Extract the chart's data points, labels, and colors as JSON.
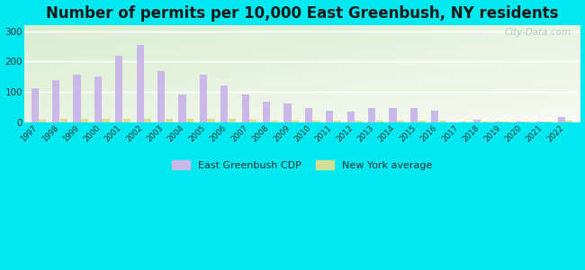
{
  "title": "Number of permits per 10,000 East Greenbush, NY residents",
  "years": [
    1997,
    1998,
    1999,
    2000,
    2001,
    2002,
    2003,
    2004,
    2005,
    2006,
    2007,
    2008,
    2009,
    2010,
    2011,
    2012,
    2013,
    2014,
    2015,
    2016,
    2017,
    2018,
    2019,
    2020,
    2021,
    2022
  ],
  "east_greenbush": [
    113,
    140,
    157,
    152,
    218,
    255,
    168,
    92,
    157,
    122,
    92,
    68,
    63,
    46,
    40,
    35,
    47,
    47,
    47,
    40,
    0,
    10,
    2,
    2,
    2,
    18
  ],
  "ny_average": [
    10,
    12,
    12,
    13,
    13,
    13,
    12,
    12,
    13,
    12,
    8,
    7,
    6,
    5,
    5,
    5,
    6,
    6,
    6,
    5,
    4,
    4,
    4,
    4,
    4,
    5
  ],
  "bar_color_eg": "#c9b8e8",
  "bar_color_ny": "#d4df94",
  "background_outer": "#00e8f0",
  "background_plot_tl": "#c8dfc0",
  "background_plot_br": "#f5f5e8",
  "title_fontsize": 12,
  "ylim": [
    0,
    320
  ],
  "yticks": [
    0,
    100,
    200,
    300
  ],
  "legend_label_eg": "East Greenbush CDP",
  "legend_label_ny": "New York average",
  "watermark": "City-Data.com"
}
